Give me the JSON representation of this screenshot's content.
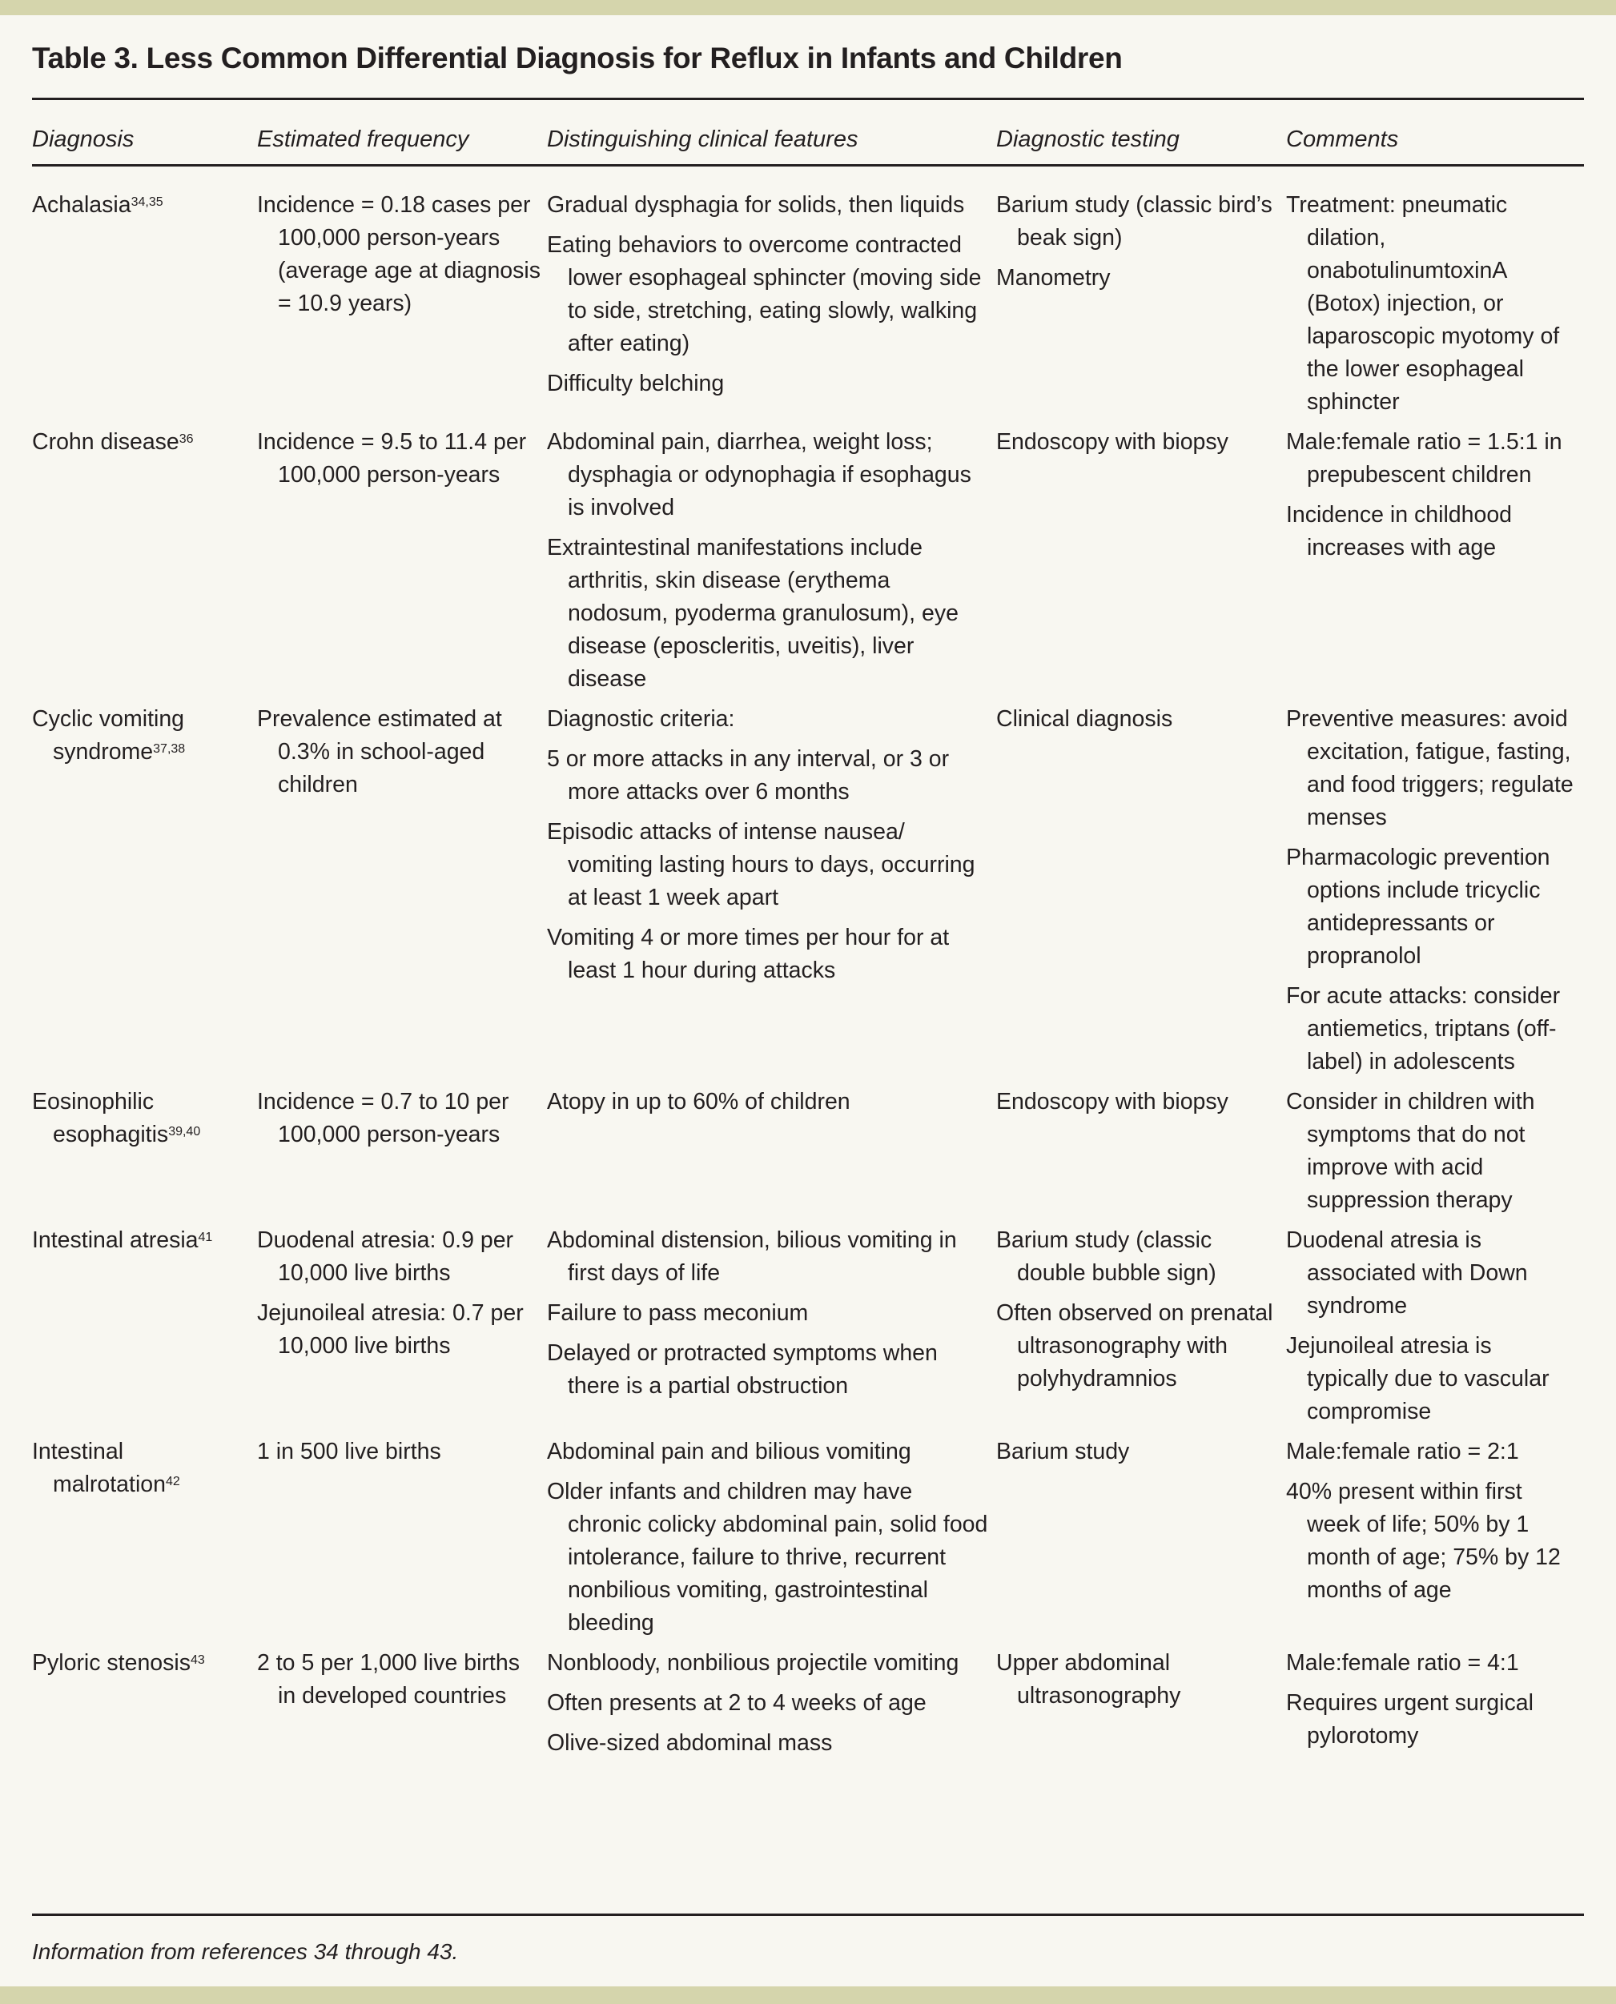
{
  "title": "Table 3. Less Common Differential Diagnosis for Reflux in Infants and Children",
  "headers": [
    "Diagnosis",
    "Estimated frequency",
    "Distinguishing clinical features",
    "Diagnostic testing",
    "Comments"
  ],
  "rows": [
    {
      "diagnosis": "Achalasia",
      "ref": "34,35",
      "frequency": [
        "Incidence = 0.18 cases per 100,000 person-years (average age at diagnosis = 10.9 years)"
      ],
      "features": [
        "Gradual dysphagia for solids, then liquids",
        "Eating behaviors to overcome contracted lower esophageal sphincter (moving side to side, stretching, eating slowly, walking after eating)",
        "Difficulty belching"
      ],
      "testing": [
        "Barium study (classic bird’s beak sign)",
        "Manometry"
      ],
      "comments": [
        "Treatment: pneumatic dilation, onabotulinumtoxinA (Botox) injection, or laparoscopic myotomy of the lower esophageal sphincter"
      ]
    },
    {
      "diagnosis": "Crohn disease",
      "ref": "36",
      "frequency": [
        "Incidence = 9.5 to 11.4 per 100,000 person-years"
      ],
      "features": [
        "Abdominal pain, diarrhea, weight loss; dysphagia or odynophagia if esophagus is involved",
        "Extraintestinal manifestations include arthritis, skin disease (erythema nodosum, pyoderma granulosum), eye disease (eposcleritis, uveitis), liver disease"
      ],
      "testing": [
        "Endoscopy with biopsy"
      ],
      "comments": [
        "Male:female ratio = 1.5:1 in prepubescent children",
        "Incidence in childhood increases with age"
      ]
    },
    {
      "diagnosis": "Cyclic vomiting syndrome",
      "ref": "37,38",
      "frequency": [
        "Prevalence estimated at 0.3% in school-aged children"
      ],
      "features": [
        "Diagnostic criteria:",
        "5 or more attacks in any interval, or 3 or more attacks over 6 months",
        "Episodic attacks of intense nausea/ vomiting lasting hours to days, occurring at least 1 week apart",
        "Vomiting 4 or more times per hour for at least 1 hour during attacks"
      ],
      "testing": [
        "Clinical diagnosis"
      ],
      "comments": [
        "Preventive measures: avoid excitation, fatigue, fasting, and food triggers; regulate menses",
        "Pharmacologic prevention options include tricyclic antidepressants or propranolol",
        "For acute attacks: consider antiemetics, triptans (off-label) in adolescents"
      ]
    },
    {
      "diagnosis": "Eosinophilic esophagitis",
      "ref": "39,40",
      "frequency": [
        "Incidence = 0.7 to 10 per 100,000 person-years"
      ],
      "features": [
        "Atopy in up to 60% of children"
      ],
      "testing": [
        "Endoscopy with biopsy"
      ],
      "comments": [
        "Consider in children with symptoms that do not improve with acid suppression therapy"
      ]
    },
    {
      "diagnosis": "Intestinal atresia",
      "ref": "41",
      "frequency": [
        "Duodenal atresia: 0.9 per 10,000 live births",
        "Jejunoileal atresia: 0.7 per 10,000 live births"
      ],
      "features": [
        "Abdominal distension, bilious vomiting in first days of life",
        "Failure to pass meconium",
        "Delayed or protracted symptoms when there is a partial obstruction"
      ],
      "testing": [
        "Barium study (classic double bubble sign)",
        "Often observed on prenatal ultrasonography with polyhydramnios"
      ],
      "comments": [
        "Duodenal atresia is associated with Down syndrome",
        "Jejunoileal atresia is typically due to vascular compromise"
      ]
    },
    {
      "diagnosis": "Intestinal malrotation",
      "ref": "42",
      "frequency": [
        "1 in 500 live births"
      ],
      "features": [
        "Abdominal pain and bilious vomiting",
        "Older infants and children may have chronic colicky abdominal pain, solid food intolerance, failure to thrive, recurrent nonbilious vomiting, gastrointestinal bleeding"
      ],
      "testing": [
        "Barium study"
      ],
      "comments": [
        "Male:female ratio = 2:1",
        "40% present within first week of life; 50% by 1 month of age; 75% by 12 months of age"
      ]
    },
    {
      "diagnosis": "Pyloric stenosis",
      "ref": "43",
      "frequency": [
        "2 to 5 per 1,000 live births in developed countries"
      ],
      "features": [
        "Nonbloody, nonbilious projectile vomiting",
        "Often presents at 2 to 4 weeks of age",
        "Olive-sized abdominal mass"
      ],
      "testing": [
        "Upper abdominal ultrasonography"
      ],
      "comments": [
        "Male:female ratio = 4:1",
        "Requires urgent surgical pylorotomy"
      ]
    }
  ],
  "footnote": "Information from references 34 through 43.",
  "colors": {
    "band": "#d5d5ac",
    "background": "#f8f7f1",
    "text": "#231f20"
  }
}
